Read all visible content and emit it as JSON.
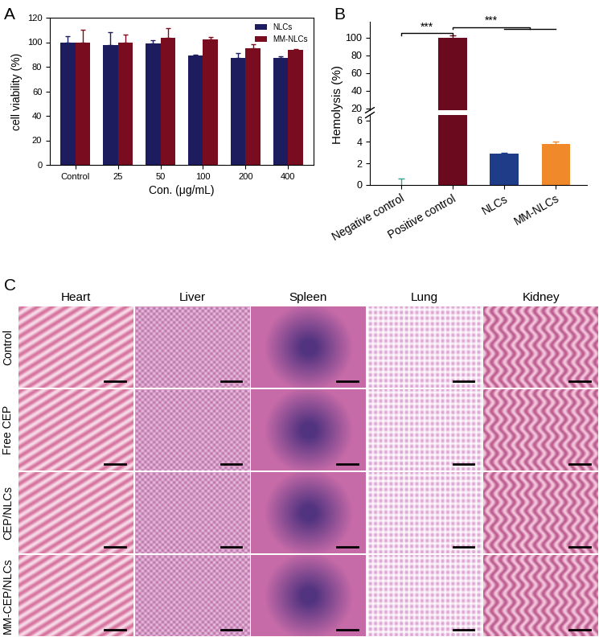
{
  "chart_data": [
    {
      "type": "bar",
      "title": "A",
      "x_label": "Con. (μg/mL)",
      "y_label": "cell viability (%)",
      "categories": [
        "Control",
        "25",
        "50",
        "100",
        "200",
        "400"
      ],
      "series": [
        {
          "name": "NLCs",
          "color": "#1c1c5e",
          "values": [
            100,
            98,
            99,
            89,
            87,
            87
          ],
          "errors": [
            5,
            10,
            2.5,
            1,
            4,
            1.5
          ]
        },
        {
          "name": "MM-NLCs",
          "color": "#7a0c20",
          "values": [
            100,
            100,
            103.5,
            102,
            95,
            93.5
          ],
          "errors": [
            10,
            6.5,
            8,
            2,
            3.5,
            1
          ]
        }
      ],
      "ylim": [
        0,
        120
      ],
      "yticks": [
        0,
        20,
        40,
        60,
        80,
        100,
        120
      ],
      "legend": "upper right"
    },
    {
      "type": "bar",
      "title": "B",
      "y_label": "Hemolysis (%)",
      "categories": [
        "Negative control",
        "Positive control",
        "NLCs",
        "MM-NLCs"
      ],
      "values": [
        0,
        100,
        2.9,
        3.8
      ],
      "errors": [
        0.6,
        2.5,
        0.12,
        0.2
      ],
      "colors": [
        "#3aa08a",
        "#6b0a1e",
        "#1f3c88",
        "#f0892a"
      ],
      "ylim": [
        0,
        118
      ],
      "y_break": [
        6.5,
        18
      ],
      "yticks": [
        0,
        2,
        4,
        6,
        20,
        40,
        60,
        80,
        100
      ],
      "annotations": [
        {
          "text": "***",
          "groups": [
            [
              "Negative control"
            ],
            [
              "Positive control"
            ]
          ]
        },
        {
          "text": "***",
          "groups": [
            [
              "Positive control"
            ],
            [
              "NLCs",
              "MM-NLCs"
            ]
          ]
        }
      ]
    }
  ],
  "histology": {
    "panel_label": "C",
    "columns": [
      "Heart",
      "Liver",
      "Spleen",
      "Lung",
      "Kidney"
    ],
    "rows": [
      "Control",
      "Free CEP",
      "CEP/NLCs",
      "MM-CEP/NLCs"
    ]
  }
}
